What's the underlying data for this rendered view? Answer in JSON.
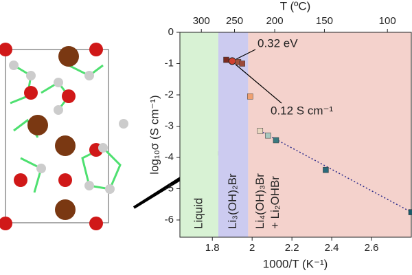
{
  "chart_data": {
    "type": "scatter",
    "x_label": "1000/T (K⁻¹)",
    "y_label": "log₁₀σ (S cm⁻¹)",
    "x2_label": "T (ºC)",
    "xlim": [
      1.637,
      2.8
    ],
    "xticks": [
      1.8,
      2.0,
      2.2,
      2.4,
      2.6
    ],
    "ylim": [
      -6.55,
      0
    ],
    "yticks": [
      0,
      -1,
      -2,
      -3,
      -4,
      -5,
      -6
    ],
    "x2ticks": [
      300,
      250,
      200,
      150,
      100
    ],
    "regions": [
      {
        "label_lines": [
          "Liquid"
        ],
        "from": 1.637,
        "to": 1.83,
        "color": "#d8f2d4"
      },
      {
        "label_lines": [
          "Li₃(OH)₂Br"
        ],
        "from": 1.83,
        "to": 1.98,
        "color": "#cccbf0"
      },
      {
        "label_lines": [
          "Li₄(OH)₃Br",
          "+ Li₂OHBr"
        ],
        "from": 1.98,
        "to": 2.8,
        "color": "#f4d2cc"
      }
    ],
    "x": [
      1.87,
      1.9,
      1.93,
      1.95,
      1.99,
      2.04,
      2.08,
      2.12,
      2.37,
      2.8
    ],
    "values": [
      -0.88,
      -0.92,
      -0.95,
      -1.0,
      -2.05,
      -3.15,
      -3.3,
      -3.45,
      -4.4,
      -5.75
    ],
    "point_colors": [
      "#7a2a20",
      "#d04030",
      "#a0523e",
      "#9a4a3a",
      "#f0a070",
      "#e8d8c0",
      "#a8c8c0",
      "#3a7a80",
      "#2a6a7a",
      "#1a5a6a"
    ],
    "fit": {
      "x": [
        2.04,
        2.8
      ],
      "values": [
        -3.15,
        -5.75
      ],
      "color": "#2a2a8a"
    },
    "annotations": [
      "0.32 eV",
      "0.12 S cm⁻¹"
    ]
  }
}
